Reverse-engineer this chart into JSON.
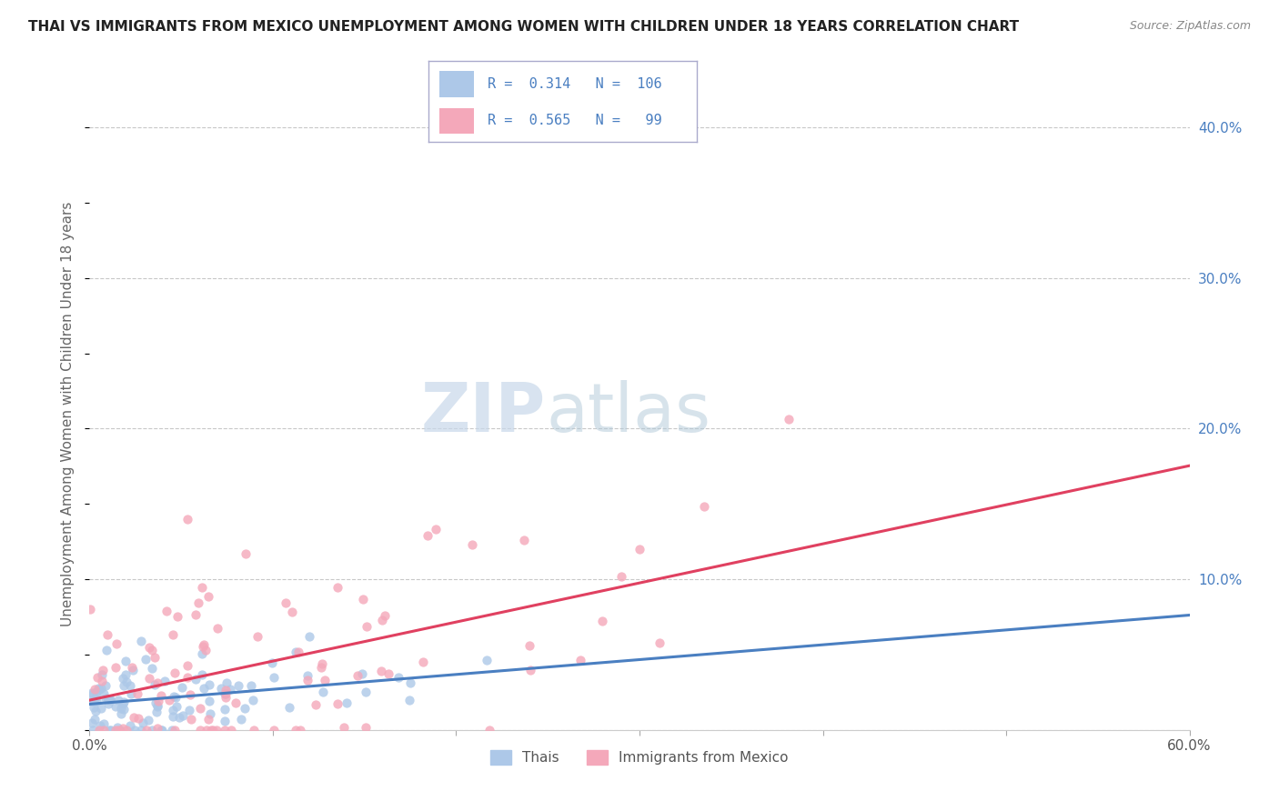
{
  "title": "THAI VS IMMIGRANTS FROM MEXICO UNEMPLOYMENT AMONG WOMEN WITH CHILDREN UNDER 18 YEARS CORRELATION CHART",
  "source": "Source: ZipAtlas.com",
  "ylabel": "Unemployment Among Women with Children Under 18 years",
  "xlim": [
    0.0,
    0.6
  ],
  "ylim": [
    0.0,
    0.42
  ],
  "xticks": [
    0.0,
    0.1,
    0.2,
    0.3,
    0.4,
    0.5,
    0.6
  ],
  "xtick_labels": [
    "0.0%",
    "",
    "",
    "",
    "",
    "",
    "60.0%"
  ],
  "yticks": [
    0.0,
    0.1,
    0.2,
    0.3,
    0.4
  ],
  "right_ytick_labels": [
    "",
    "10.0%",
    "20.0%",
    "30.0%",
    "40.0%"
  ],
  "thai_R": "0.314",
  "thai_N": "106",
  "mexico_R": "0.565",
  "mexico_N": "99",
  "thai_color": "#adc8e8",
  "mexico_color": "#f4a8ba",
  "thai_line_color": "#4a7fc1",
  "mexico_line_color": "#e04060",
  "background_color": "#ffffff",
  "grid_color": "#c8c8c8",
  "title_color": "#222222",
  "label_color": "#4a7fc1",
  "watermark_zip": "ZIP",
  "watermark_atlas": "atlas",
  "legend_edge_color": "#aaaacc",
  "bottom_legend_color": "#555555"
}
